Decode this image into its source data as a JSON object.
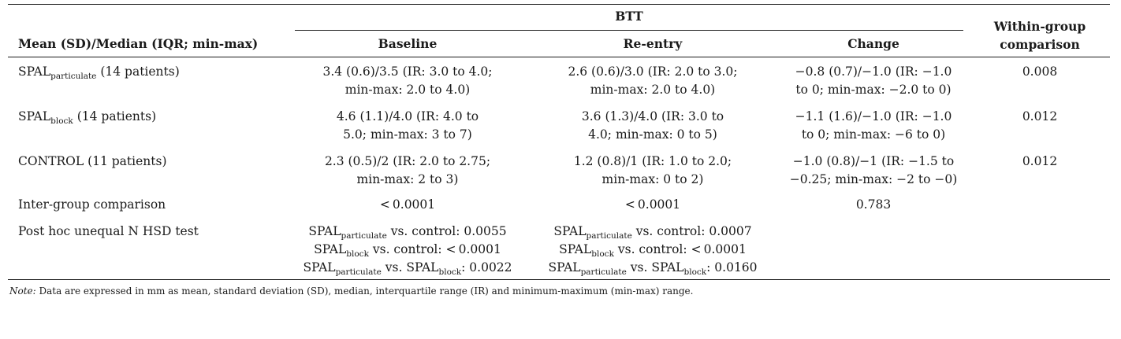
{
  "header": {
    "group": "BTT",
    "row_label": "Mean (SD)/Median (IQR; min-max)",
    "baseline": "Baseline",
    "reentry": "Re-entry",
    "change": "Change",
    "within_line1": "Within-group",
    "within_line2": "comparison"
  },
  "rows": [
    {
      "label_main": "SPAL",
      "label_sub": "particulate",
      "label_rest": " (14 patients)",
      "baseline": [
        "3.4 (0.6)/3.5 (IR: 3.0 to 4.0;",
        "min-max: 2.0 to 4.0)"
      ],
      "reentry": [
        "2.6 (0.6)/3.0 (IR: 2.0 to 3.0;",
        "min-max: 2.0 to 4.0)"
      ],
      "change": [
        "−0.8 (0.7)/−1.0 (IR: −1.0",
        "to 0; min-max: −2.0 to 0)"
      ],
      "within": "0.008"
    },
    {
      "label_main": "SPAL",
      "label_sub": "block",
      "label_rest": " (14 patients)",
      "baseline": [
        "4.6 (1.1)/4.0 (IR: 4.0 to",
        "5.0; min-max: 3 to 7)"
      ],
      "reentry": [
        "3.6 (1.3)/4.0 (IR: 3.0 to",
        "4.0; min-max: 0 to 5)"
      ],
      "change": [
        "−1.1 (1.6)/−1.0 (IR: −1.0",
        "to 0; min-max: −6 to 0)"
      ],
      "within": "0.012"
    },
    {
      "label_main": "CONTROL (11 patients)",
      "label_sub": "",
      "label_rest": "",
      "baseline": [
        "2.3 (0.5)/2 (IR: 2.0 to 2.75;",
        "min-max: 2 to 3)"
      ],
      "reentry": [
        "1.2 (0.8)/1 (IR: 1.0 to 2.0;",
        "min-max: 0 to 2)"
      ],
      "change": [
        "−1.0 (0.8)/−1 (IR: −1.5 to",
        "−0.25; min-max: −2 to −0)"
      ],
      "within": "0.012"
    }
  ],
  "intergroup": {
    "label": "Inter-group comparison",
    "baseline": "< 0.0001",
    "reentry": "< 0.0001",
    "change": "0.783"
  },
  "posthoc": {
    "label": "Post hoc unequal N HSD test",
    "baseline": [
      {
        "a": "SPAL",
        "a_sub": "particulate",
        "mid": " vs. control: 0.0055",
        "b": "",
        "b_sub": "",
        "end": ""
      },
      {
        "a": "SPAL",
        "a_sub": "block",
        "mid": " vs. control: < 0.0001",
        "b": "",
        "b_sub": "",
        "end": ""
      },
      {
        "a": "SPAL",
        "a_sub": "particulate",
        "mid": " vs. ",
        "b": "SPAL",
        "b_sub": "block",
        "end": ": 0.0022"
      }
    ],
    "reentry": [
      {
        "a": "SPAL",
        "a_sub": "particulate",
        "mid": " vs. control: 0.0007",
        "b": "",
        "b_sub": "",
        "end": ""
      },
      {
        "a": "SPAL",
        "a_sub": "block",
        "mid": " vs. control: < 0.0001",
        "b": "",
        "b_sub": "",
        "end": ""
      },
      {
        "a": "SPAL",
        "a_sub": "particulate",
        "mid": " vs. ",
        "b": "SPAL",
        "b_sub": "block",
        "end": ": 0.0160"
      }
    ]
  },
  "note": {
    "lead": "Note:",
    "text": " Data are expressed in mm as mean, standard deviation (SD), median, interquartile range (IR) and minimum-maximum (min-max) range."
  }
}
